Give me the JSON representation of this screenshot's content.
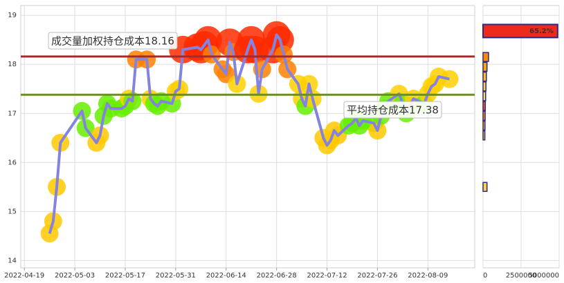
{
  "chart_data": [
    {
      "type": "line",
      "x": [
        "2022-04-26",
        "2022-04-27",
        "2022-04-28",
        "2022-04-29",
        "2022-05-05",
        "2022-05-06",
        "2022-05-09",
        "2022-05-10",
        "2022-05-11",
        "2022-05-12",
        "2022-05-13",
        "2022-05-16",
        "2022-05-17",
        "2022-05-18",
        "2022-05-19",
        "2022-05-20",
        "2022-05-23",
        "2022-05-24",
        "2022-05-25",
        "2022-05-26",
        "2022-05-27",
        "2022-05-30",
        "2022-05-31",
        "2022-06-01",
        "2022-06-02",
        "2022-06-06",
        "2022-06-07",
        "2022-06-08",
        "2022-06-09",
        "2022-06-10",
        "2022-06-13",
        "2022-06-14",
        "2022-06-15",
        "2022-06-16",
        "2022-06-17",
        "2022-06-20",
        "2022-06-21",
        "2022-06-22",
        "2022-06-23",
        "2022-06-24",
        "2022-06-27",
        "2022-06-28",
        "2022-06-29",
        "2022-06-30",
        "2022-07-01",
        "2022-07-04",
        "2022-07-05",
        "2022-07-06",
        "2022-07-07",
        "2022-07-08",
        "2022-07-11",
        "2022-07-12",
        "2022-07-13",
        "2022-07-14",
        "2022-07-15",
        "2022-07-18",
        "2022-07-19",
        "2022-07-20",
        "2022-07-21",
        "2022-07-22",
        "2022-07-25",
        "2022-07-26",
        "2022-07-27",
        "2022-07-28",
        "2022-07-29",
        "2022-08-01",
        "2022-08-02",
        "2022-08-03",
        "2022-08-04",
        "2022-08-05",
        "2022-08-08",
        "2022-08-09",
        "2022-08-10",
        "2022-08-11",
        "2022-08-12",
        "2022-08-15"
      ],
      "series": [
        {
          "color": "#8484e0",
          "values": [
            14.55,
            14.8,
            15.5,
            16.4,
            17.05,
            16.7,
            16.4,
            16.55,
            16.95,
            17.2,
            17.1,
            17.1,
            17.15,
            17.3,
            17.25,
            18.1,
            18.1,
            17.3,
            17.2,
            17.15,
            17.25,
            17.2,
            17.45,
            17.5,
            18.3,
            18.35,
            18.3,
            18.4,
            18.5,
            18.2,
            17.9,
            17.8,
            18.45,
            18.25,
            17.6,
            18.3,
            18.5,
            18.3,
            17.4,
            17.9,
            18.3,
            18.6,
            18.5,
            18.2,
            17.9,
            17.6,
            17.3,
            17.15,
            17.6,
            17.3,
            16.5,
            16.35,
            16.45,
            16.65,
            16.55,
            16.75,
            16.8,
            16.9,
            16.75,
            16.85,
            16.8,
            16.65,
            16.95,
            17.1,
            17.25,
            17.4,
            17.2,
            17.0,
            17.15,
            17.3,
            17.2,
            17.4,
            17.55,
            17.6,
            17.75,
            17.7
          ]
        }
      ],
      "xlim": [
        "2022-04-18",
        "2022-08-22"
      ],
      "xticks": [
        "2022-04-19",
        "2022-05-03",
        "2022-05-17",
        "2022-05-31",
        "2022-06-14",
        "2022-06-28",
        "2022-07-12",
        "2022-07-26",
        "2022-08-09"
      ],
      "ylim": [
        13.85,
        19.2
      ],
      "yticks": [
        14,
        15,
        16,
        17,
        18,
        19
      ],
      "grid": true,
      "reference_lines": [
        {
          "value": 18.16,
          "label": "成交量加权持仓成本18.16",
          "color": "#a52a2a"
        },
        {
          "value": 17.38,
          "label": "平均持仓成本17.38",
          "color": "#6b8e23"
        }
      ]
    },
    {
      "type": "histogram",
      "bars": [
        {
          "price": 18.68,
          "volume": 4900000,
          "label": "65.2%"
        },
        {
          "price": 18.15,
          "volume": 360000
        },
        {
          "price": 17.95,
          "volume": 260000
        },
        {
          "price": 17.75,
          "volume": 220000
        },
        {
          "price": 17.55,
          "volume": 190000
        },
        {
          "price": 17.35,
          "volume": 170000
        },
        {
          "price": 17.15,
          "volume": 150000
        },
        {
          "price": 16.95,
          "volume": 140000
        },
        {
          "price": 16.75,
          "volume": 130000
        },
        {
          "price": 16.55,
          "volume": 120000
        },
        {
          "price": 15.5,
          "volume": 260000
        }
      ],
      "xlim": [
        0,
        5000000
      ],
      "xticks": [
        0,
        2500000,
        5000000
      ],
      "ylim": [
        13.85,
        19.2
      ],
      "color": "#ee2a1a",
      "border_color": "#2a2a8a"
    }
  ]
}
